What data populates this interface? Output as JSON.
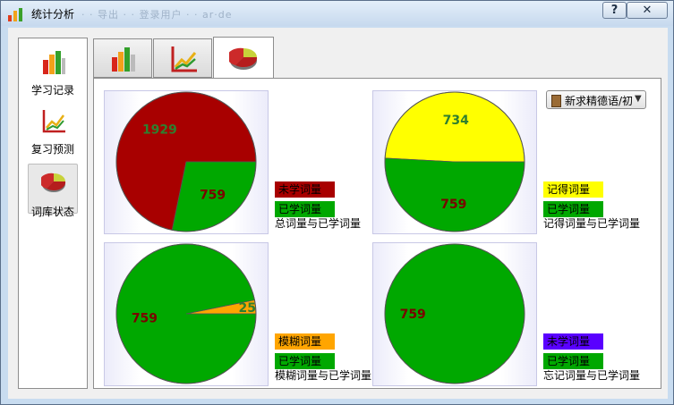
{
  "window": {
    "title": "统计分析",
    "title_ghost": "· · 导出 · · 登录用户 · · ar·de"
  },
  "titlebar": {
    "help_label": "?",
    "close_label": "✕"
  },
  "sidebar": {
    "items": [
      {
        "label": "学习记录",
        "icon": "bar-chart-icon"
      },
      {
        "label": "复习预测",
        "icon": "line-chart-icon"
      },
      {
        "label": "词库状态",
        "icon": "pie-chart-icon"
      }
    ]
  },
  "tabs": [
    {
      "icon": "bar-chart-icon",
      "selected": false
    },
    {
      "icon": "line-chart-icon",
      "selected": false
    },
    {
      "icon": "pie-chart-icon",
      "selected": true
    }
  ],
  "dropdown": {
    "value": "新求精德语/初"
  },
  "colors": {
    "dark_red": "#a80000",
    "green": "#00a800",
    "yellow": "#ffff00",
    "orange": "#ffa500",
    "violet": "#5a00ff"
  },
  "chart_data": [
    {
      "type": "pie",
      "caption": "总词量与已学词量",
      "slices": [
        {
          "label": "未学词量",
          "value": 1929,
          "color": "#a80000"
        },
        {
          "label": "已学词量",
          "value": 759,
          "color": "#00a800"
        }
      ]
    },
    {
      "type": "pie",
      "caption": "记得词量与已学词量",
      "slices": [
        {
          "label": "记得词量",
          "value": 734,
          "color": "#ffff00"
        },
        {
          "label": "已学词量",
          "value": 759,
          "color": "#00a800"
        }
      ]
    },
    {
      "type": "pie",
      "caption": "模糊词量与已学词量",
      "slices": [
        {
          "label": "模糊词量",
          "value": 25,
          "color": "#ffa500"
        },
        {
          "label": "已学词量",
          "value": 759,
          "color": "#00a800"
        }
      ]
    },
    {
      "type": "pie",
      "caption": "忘记词量与已学词量",
      "slices": [
        {
          "label": "未学词量",
          "value": 0,
          "color": "#5a00ff"
        },
        {
          "label": "已学词量",
          "value": 759,
          "color": "#00a800"
        }
      ]
    }
  ]
}
